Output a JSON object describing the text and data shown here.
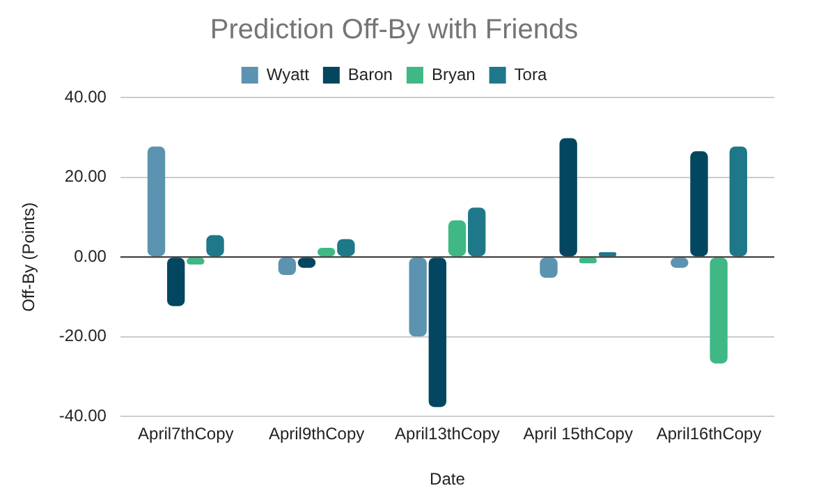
{
  "chart_data": {
    "type": "bar",
    "title": "Prediction Off-By with Friends",
    "xlabel": "Date",
    "ylabel": "Off-By (Points)",
    "categories": [
      "April7thCopy",
      "April9thCopy",
      "April13thCopy",
      "April 15thCopy",
      "April16thCopy"
    ],
    "series": [
      {
        "name": "Wyatt",
        "color": "#5b93b0",
        "values": [
          27.7,
          -4.5,
          -19.9,
          -5.2,
          -2.7
        ]
      },
      {
        "name": "Baron",
        "color": "#02475f",
        "values": [
          -12.3,
          -2.7,
          -37.6,
          29.8,
          26.5
        ]
      },
      {
        "name": "Bryan",
        "color": "#3fb886",
        "values": [
          -1.9,
          2.3,
          9.2,
          -1.6,
          -26.7
        ]
      },
      {
        "name": "Tora",
        "color": "#1e7889",
        "values": [
          5.5,
          4.5,
          12.4,
          1.2,
          27.7
        ]
      }
    ],
    "ylim": [
      -40,
      40
    ],
    "yticks": [
      {
        "value": -40,
        "label": "-40.00"
      },
      {
        "value": -20,
        "label": "-20.00"
      },
      {
        "value": 0,
        "label": "0.00"
      },
      {
        "value": 20,
        "label": "20.00"
      },
      {
        "value": 40,
        "label": "40.00"
      }
    ],
    "grid": "y",
    "legend": "top"
  }
}
